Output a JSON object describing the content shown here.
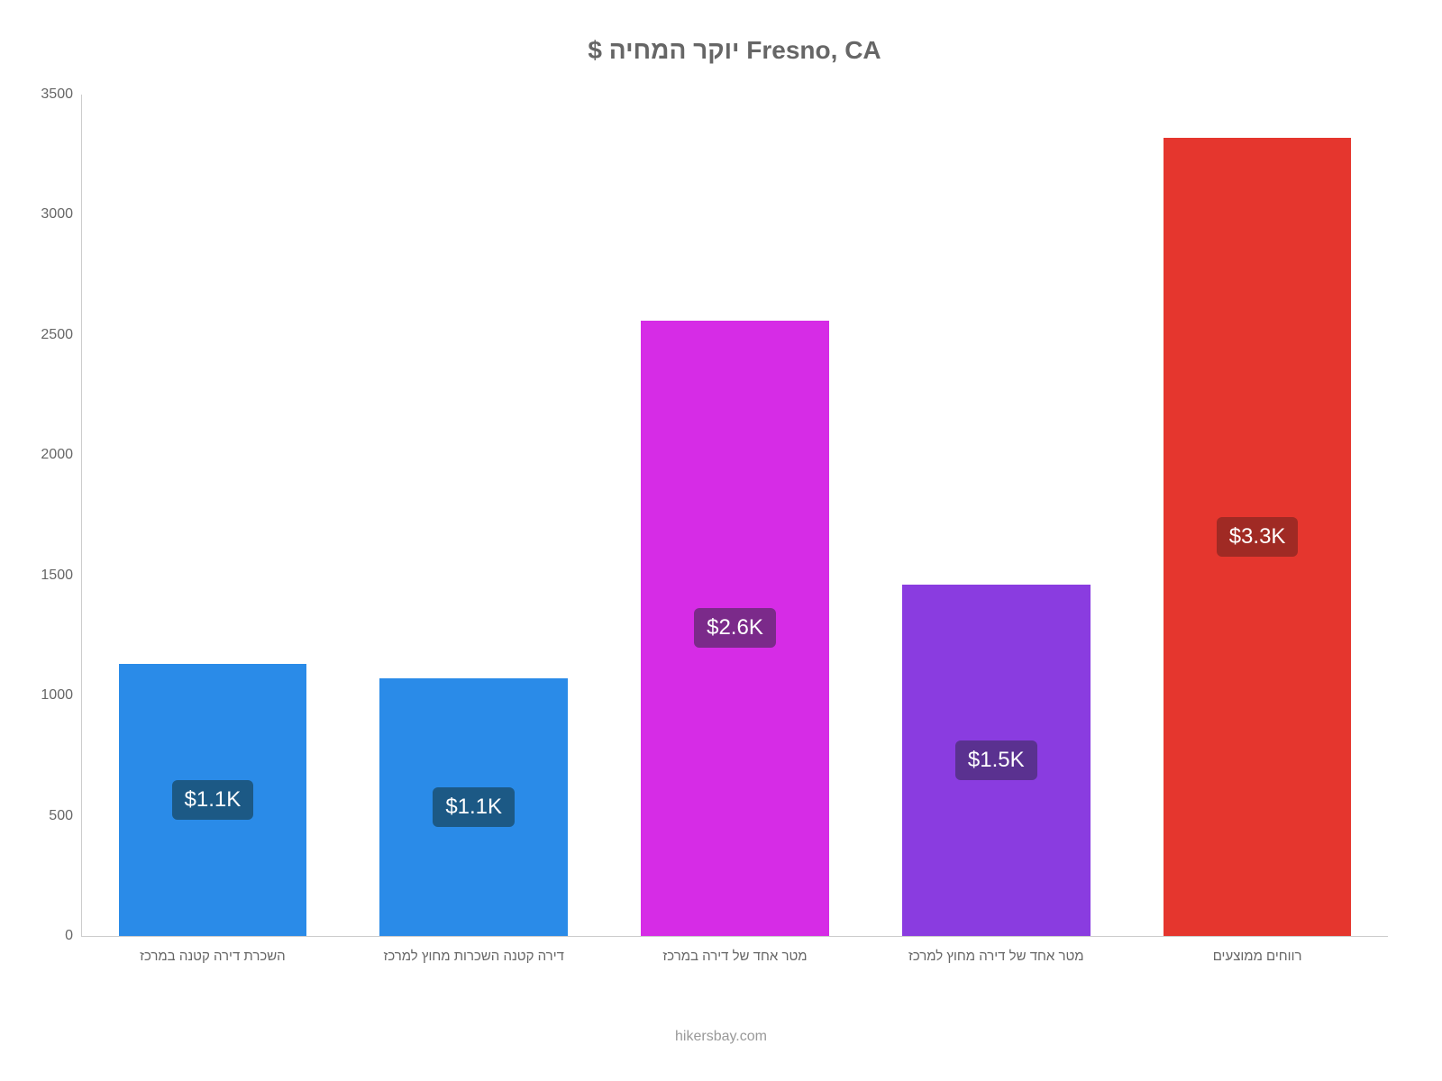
{
  "chart": {
    "type": "bar",
    "title": "$ יוקר המחיה Fresno, CA",
    "title_fontsize": 28,
    "title_color": "#666666",
    "background_color": "#ffffff",
    "ylim": [
      0,
      3500
    ],
    "ytick_step": 500,
    "yticks": [
      0,
      500,
      1000,
      1500,
      2000,
      2500,
      3000,
      3500
    ],
    "axis_color": "#cccccc",
    "tick_label_fontsize": 16,
    "tick_label_color": "#666666",
    "x_label_fontsize": 15,
    "bar_width_ratio": 0.72,
    "bar_label_fontsize": 24,
    "bars": [
      {
        "category": "השכרת דירה קטנה במרכז",
        "value": 1130,
        "label": "$1.1K",
        "color": "#2a8be8",
        "label_bg": "#1c5985"
      },
      {
        "category": "דירה קטנה השכרות מחוץ למרכז",
        "value": 1070,
        "label": "$1.1K",
        "color": "#2a8be8",
        "label_bg": "#1c5985"
      },
      {
        "category": "מטר אחד של דירה במרכז",
        "value": 2560,
        "label": "$2.6K",
        "color": "#d62ce6",
        "label_bg": "#7b2a8a"
      },
      {
        "category": "מטר אחד של דירה מחוץ למרכז",
        "value": 1460,
        "label": "$1.5K",
        "color": "#8a3ce0",
        "label_bg": "#5a3190"
      },
      {
        "category": "רווחים ממוצעים",
        "value": 3320,
        "label": "$3.3K",
        "color": "#e5362e",
        "label_bg": "#a02a24"
      }
    ]
  },
  "attribution": "hikersbay.com"
}
